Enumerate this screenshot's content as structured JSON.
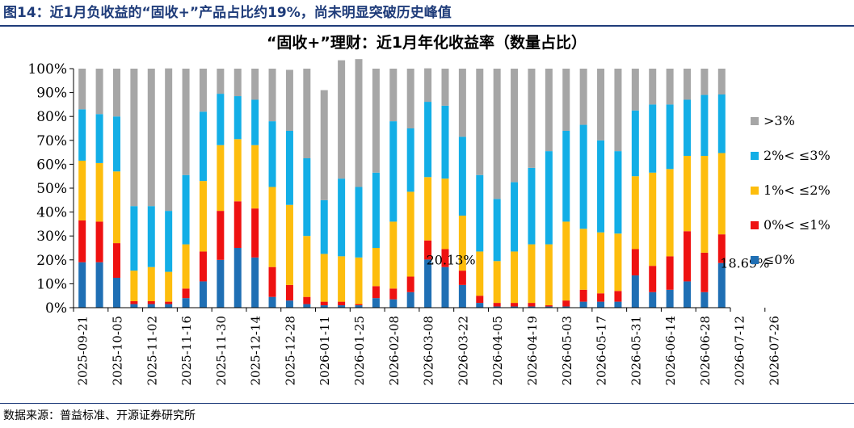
{
  "figure_title": "图14：近1月负收益的“固收+”产品占比约19%，尚未明显突破历史峰值",
  "source": "数据来源：普益标准、开源证券研究所",
  "colors": {
    "le0": "#1f6fb4",
    "p0_1": "#ee1111",
    "p1_2": "#fdbd0d",
    "p2_3": "#13aee6",
    "gt3": "#a6a6a6",
    "title_blue": "#1f3c7a"
  },
  "chart_data": {
    "type": "bar",
    "stacked": true,
    "title": "“固收+”理财：近1月年化收益率（数量占比）",
    "xlabel": "",
    "ylabel": "",
    "ylim": [
      0,
      100
    ],
    "yticks": [
      "0%",
      "10%",
      "20%",
      "30%",
      "40%",
      "50%",
      "60%",
      "70%",
      "80%",
      "90%",
      "100%"
    ],
    "grid": false,
    "legend_position": "right",
    "x_tick_labels": [
      "2025-09-21",
      "2025-10-05",
      "2025-11-02",
      "2025-11-16",
      "2025-11-30",
      "2025-12-14",
      "2025-12-28",
      "2026-01-11",
      "2026-01-25",
      "2026-02-08",
      "2026-03-08",
      "2026-03-22",
      "2026-04-05",
      "2026-04-19",
      "2026-05-03",
      "2026-05-17",
      "2026-05-31",
      "2026-06-14",
      "2026-06-28",
      "2026-07-12",
      "2026-07-26"
    ],
    "bar_count": 38,
    "series": [
      {
        "name": "≤0%",
        "values": [
          19,
          19,
          12.5,
          1.5,
          1.5,
          1.5,
          4,
          11,
          20,
          25,
          21,
          4.5,
          3,
          1.5,
          1,
          1,
          1,
          4,
          3.5,
          6.5,
          20.13,
          17,
          9.5,
          2,
          0.5,
          0.5,
          0.5,
          0.5,
          0.5,
          2.5,
          2.5,
          2.5,
          13.5,
          6.5,
          7.5,
          11,
          6.5,
          18.69
        ]
      },
      {
        "name": "0%< ≤1%",
        "values": [
          17.5,
          17,
          14.5,
          1.2,
          1.2,
          1,
          4,
          12.5,
          20.5,
          19.5,
          20.5,
          12.5,
          6.5,
          3,
          1.5,
          1.5,
          0.5,
          5,
          4.5,
          6.5,
          8,
          7.5,
          6,
          3,
          1.5,
          1.5,
          1.5,
          0.5,
          2.5,
          5,
          3.5,
          4.5,
          11,
          11,
          14,
          21,
          16.5,
          12
        ]
      },
      {
        "name": "1%< ≤2%",
        "values": [
          25,
          24.5,
          30,
          12.8,
          14.3,
          12.5,
          18.5,
          29.5,
          27.5,
          26,
          26.5,
          33.5,
          33.5,
          25.5,
          20,
          19,
          19.5,
          16,
          28,
          35.5,
          26.5,
          29.5,
          23,
          18.5,
          17.5,
          21.5,
          24.5,
          25.5,
          33,
          25.5,
          25.5,
          24,
          30.5,
          39,
          36.5,
          31.5,
          40.5,
          34
        ]
      },
      {
        "name": "2%< ≤3%",
        "values": [
          21.5,
          20.5,
          23,
          27,
          25.5,
          25.5,
          29,
          29,
          21.5,
          18,
          19,
          27.5,
          31,
          32.5,
          22.5,
          32.5,
          29.5,
          31.5,
          42,
          26.5,
          31.5,
          30.5,
          33,
          32,
          26,
          29,
          32,
          39,
          38,
          43.5,
          38.5,
          34.5,
          27.5,
          28.5,
          27,
          23.5,
          25.5,
          24.5
        ]
      },
      {
        "name": ">3%",
        "values": [
          17,
          19,
          20,
          57.5,
          57.5,
          59.6,
          44.5,
          18,
          10.5,
          11.5,
          13,
          22,
          25.5,
          37.5,
          46,
          49.5,
          53.5,
          43.5,
          22,
          25,
          14,
          15.5,
          28.5,
          44.5,
          54.5,
          47.5,
          41.5,
          34.5,
          26,
          23.5,
          30,
          34.5,
          17.5,
          15,
          15,
          13,
          11,
          10.81
        ]
      }
    ],
    "annotations": [
      {
        "text": "20.13%",
        "bar_index": 20
      },
      {
        "text": "18.69%",
        "bar_index": 37
      }
    ]
  }
}
